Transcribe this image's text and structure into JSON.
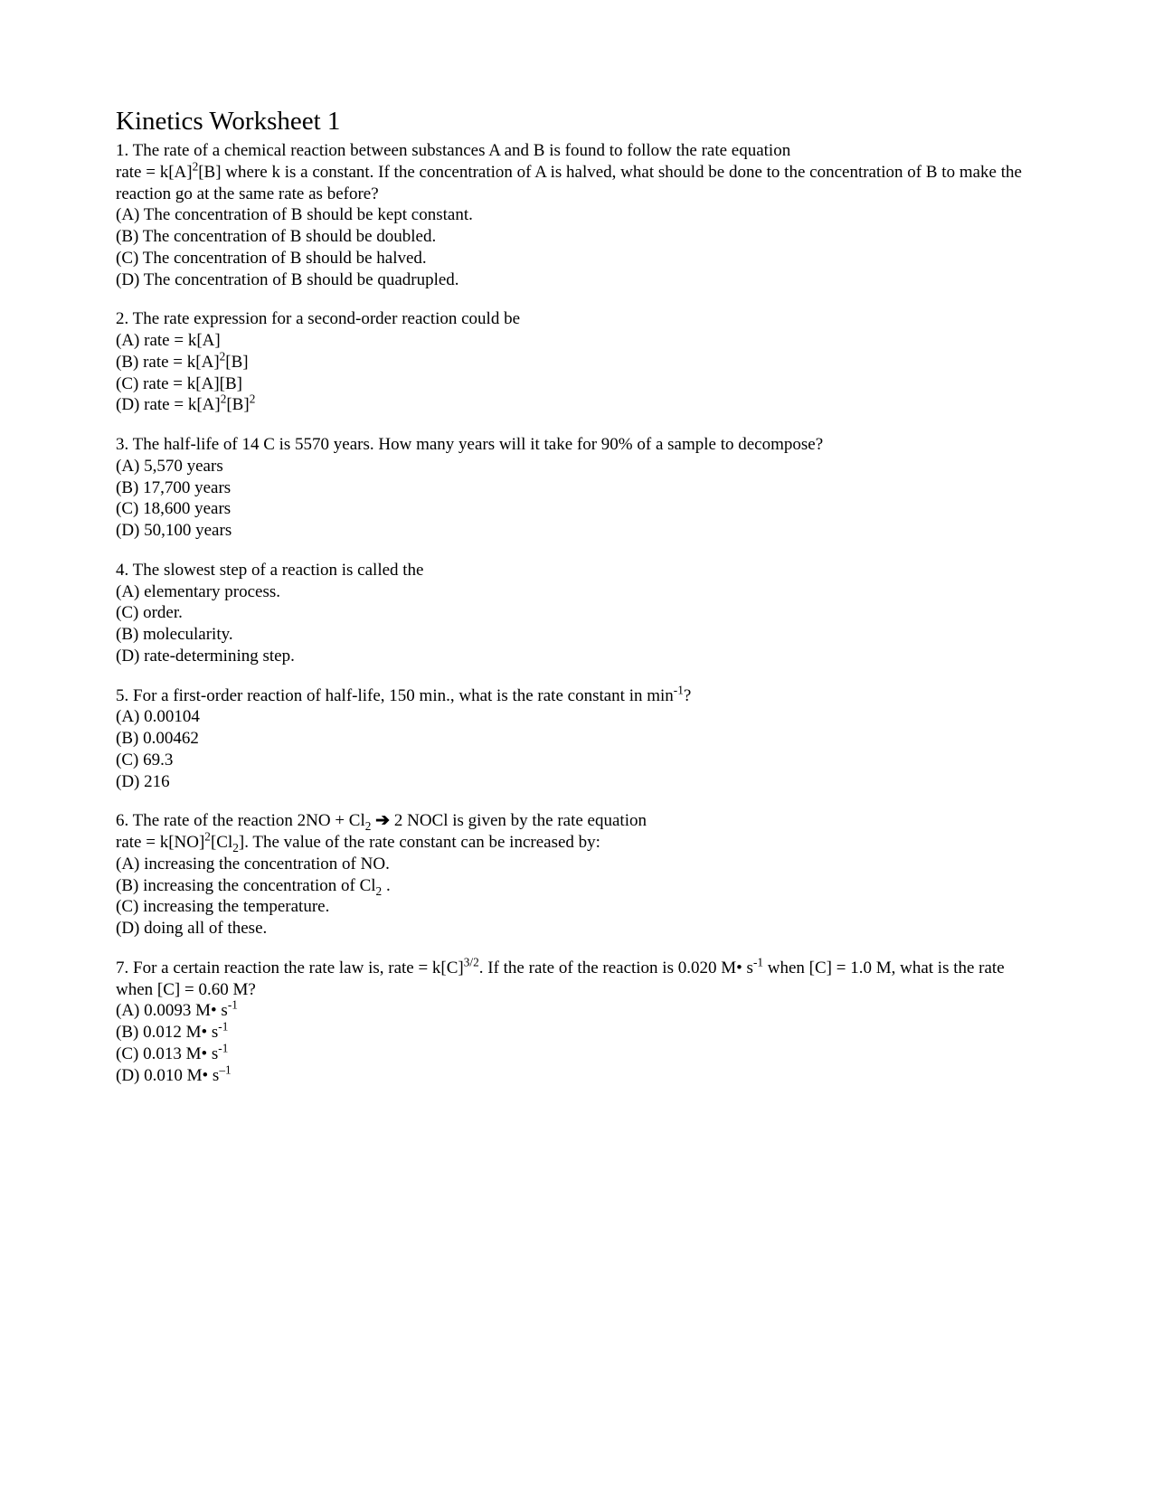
{
  "title": "Kinetics Worksheet 1",
  "questions": [
    {
      "number": "1",
      "text_parts": [
        "1. The rate of a chemical reaction between substances A and B is found to follow the rate equation",
        "rate = k[A]",
        "2",
        "[B] where k is a constant. If the concentration of A is halved, what should be done to the concentration of B to make the reaction go at the same rate as before?"
      ],
      "options": [
        "(A) The concentration of B should be kept constant.",
        "(B) The concentration of B should be doubled.",
        "(C) The concentration of B should be halved.",
        "(D) The concentration of B should be quadrupled."
      ]
    },
    {
      "number": "2",
      "text": "2. The rate expression for a second-order reaction could be",
      "options_complex": [
        {
          "parts": [
            {
              "t": "(A) rate = k[A]"
            }
          ]
        },
        {
          "parts": [
            {
              "t": "(B) rate = k[A]"
            },
            {
              "t": "2",
              "sup": true
            },
            {
              "t": "[B]"
            }
          ]
        },
        {
          "parts": [
            {
              "t": "(C) rate = k[A][B]"
            }
          ]
        },
        {
          "parts": [
            {
              "t": "(D) rate = k[A]"
            },
            {
              "t": "2",
              "sup": true
            },
            {
              "t": "[B]"
            },
            {
              "t": "2",
              "sup": true
            }
          ]
        }
      ]
    },
    {
      "number": "3",
      "text": "3. The half-life of 14 C is 5570 years. How many years will it take for 90% of a sample to decompose?",
      "options": [
        "(A) 5,570 years",
        "(B) 17,700 years",
        "(C) 18,600 years",
        "(D) 50,100 years"
      ]
    },
    {
      "number": "4",
      "text": "4. The slowest step of a reaction is called the",
      "options": [
        "(A) elementary process.",
        "(C) order.",
        "(B) molecularity.",
        "(D) rate-determining step."
      ]
    },
    {
      "number": "5",
      "text_parts": [
        "5. For a first-order reaction of half-life, 150 min., what is the rate constant in min",
        "-1",
        "?"
      ],
      "options": [
        "(A) 0.00104",
        "(B) 0.00462",
        "(C) 69.3",
        "(D) 216"
      ]
    },
    {
      "number": "6",
      "text_parts": [
        "6. The rate of the reaction 2NO + Cl",
        "2",
        " ",
        "➔",
        " 2 NOCl is given by the rate equation",
        "rate = k[NO]",
        "2",
        "[Cl",
        "2",
        "]. The value of the rate constant can be increased by:"
      ],
      "options_complex": [
        {
          "parts": [
            {
              "t": "(A) increasing the concentration of NO."
            }
          ]
        },
        {
          "parts": [
            {
              "t": "(B) increasing the concentration of Cl"
            },
            {
              "t": "2",
              "sub": true
            },
            {
              "t": " ."
            }
          ]
        },
        {
          "parts": [
            {
              "t": "(C) increasing the temperature."
            }
          ]
        },
        {
          "parts": [
            {
              "t": "(D) doing all of these."
            }
          ]
        }
      ]
    },
    {
      "number": "7",
      "text_parts": [
        "7. For a certain reaction the rate law is, rate = k[C]",
        "3/2",
        ". If the rate of the reaction is 0.020 M• s",
        "-1",
        " when [C] = 1.0 M, what is the rate when [C] = 0.60 M?"
      ],
      "options_complex": [
        {
          "parts": [
            {
              "t": "(A) 0.0093 M• s"
            },
            {
              "t": "-1",
              "sup": true
            }
          ]
        },
        {
          "parts": [
            {
              "t": "(B) 0.012 M• s"
            },
            {
              "t": "-1",
              "sup": true
            }
          ]
        },
        {
          "parts": [
            {
              "t": "(C) 0.013 M• s"
            },
            {
              "t": "-1",
              "sup": true
            }
          ]
        },
        {
          "parts": [
            {
              "t": "(D) 0.010 M• s"
            },
            {
              "t": "–1",
              "sup": true
            }
          ]
        }
      ]
    }
  ]
}
